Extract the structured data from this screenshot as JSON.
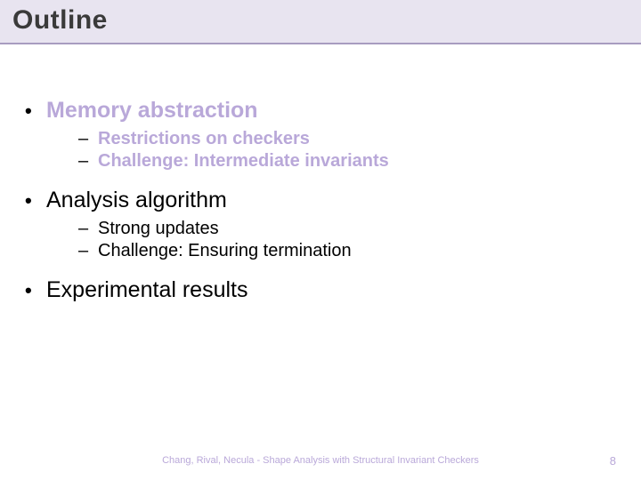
{
  "title": "Outline",
  "items": [
    {
      "label": "Memory abstraction",
      "highlighted": true,
      "subs": [
        {
          "label": "Restrictions on checkers",
          "highlighted": true
        },
        {
          "label": "Challenge: Intermediate invariants",
          "highlighted": true
        }
      ]
    },
    {
      "label": "Analysis algorithm",
      "highlighted": false,
      "subs": [
        {
          "label": "Strong updates",
          "highlighted": false
        },
        {
          "label": "Challenge: Ensuring termination",
          "highlighted": false
        }
      ]
    },
    {
      "label": "Experimental results",
      "highlighted": false,
      "subs": []
    }
  ],
  "footer": "Chang, Rival, Necula - Shape Analysis with Structural Invariant Checkers",
  "page": "8",
  "colors": {
    "band_bg": "#e8e4f0",
    "band_border": "#a89cc0",
    "highlight": "#b9a8d9",
    "text": "#000000"
  }
}
